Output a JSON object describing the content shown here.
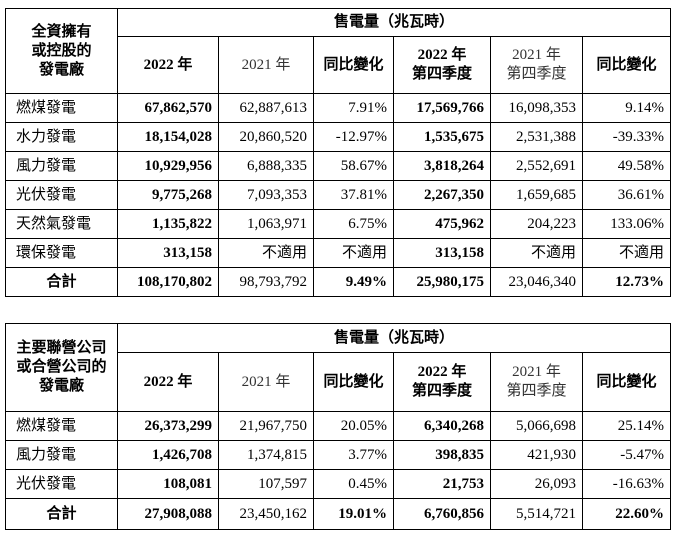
{
  "tables": [
    {
      "corner": [
        "全資擁有",
        "或控股的",
        "發電廠"
      ],
      "group_header": "售電量（兆瓦時）",
      "columns": [
        [
          "2022 年"
        ],
        [
          "2021 年"
        ],
        [
          "同比變化"
        ],
        [
          "2022 年",
          "第四季度"
        ],
        [
          "2021 年",
          "第四季度"
        ],
        [
          "同比變化"
        ]
      ],
      "rows": [
        [
          "燃煤發電",
          "67,862,570",
          "62,887,613",
          "7.91%",
          "17,569,766",
          "16,098,353",
          "9.14%"
        ],
        [
          "水力發電",
          "18,154,028",
          "20,860,520",
          "-12.97%",
          "1,535,675",
          "2,531,388",
          "-39.33%"
        ],
        [
          "風力發電",
          "10,929,956",
          "6,888,335",
          "58.67%",
          "3,818,264",
          "2,552,691",
          "49.58%"
        ],
        [
          "光伏發電",
          "9,775,268",
          "7,093,353",
          "37.81%",
          "2,267,350",
          "1,659,685",
          "36.61%"
        ],
        [
          "天然氣發電",
          "1,135,822",
          "1,063,971",
          "6.75%",
          "475,962",
          "204,223",
          "133.06%"
        ],
        [
          "環保發電",
          "313,158",
          "不適用",
          "不適用",
          "313,158",
          "不適用",
          "不適用"
        ],
        [
          "合計",
          "108,170,802",
          "98,793,792",
          "9.49%",
          "25,980,175",
          "23,046,340",
          "12.73%"
        ]
      ]
    },
    {
      "corner": [
        "主要聯營公司",
        "或合營公司的",
        "發電廠"
      ],
      "group_header": "售電量（兆瓦時）",
      "columns": [
        [
          "2022 年"
        ],
        [
          "2021 年"
        ],
        [
          "同比變化"
        ],
        [
          "2022 年",
          "第四季度"
        ],
        [
          "2021 年",
          "第四季度"
        ],
        [
          "同比變化"
        ]
      ],
      "rows": [
        [
          "燃煤發電",
          "26,373,299",
          "21,967,750",
          "20.05%",
          "6,340,268",
          "5,066,698",
          "25.14%"
        ],
        [
          "風力發電",
          "1,426,708",
          "1,374,815",
          "3.77%",
          "398,835",
          "421,930",
          "-5.47%"
        ],
        [
          "光伏發電",
          "108,081",
          "107,597",
          "0.45%",
          "21,753",
          "26,093",
          "-16.63%"
        ],
        [
          "合計",
          "27,908,088",
          "23,450,162",
          "19.01%",
          "6,760,856",
          "5,514,721",
          "22.60%"
        ]
      ]
    }
  ]
}
